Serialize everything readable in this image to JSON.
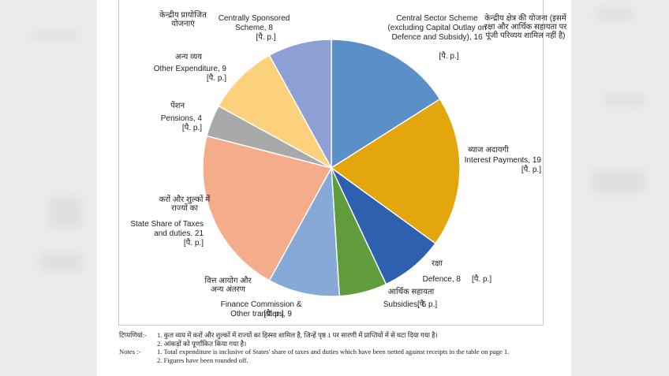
{
  "chart_data": {
    "type": "pie",
    "start_angle_deg": 0,
    "direction": "clockwise",
    "slices": [
      {
        "hi": "केन्द्रीय क्षेत्र की योजना (इसमें रक्षा और आर्थिक सहायता पर पूंजी परिव्यय शामिल नहीं है)",
        "label": "Central Sector Scheme (excluding Capital Outlay on Defence and Subsidy), 16",
        "note": "[पै. p.]",
        "value": 16,
        "color": "#5b8fc8"
      },
      {
        "hi": "ब्याज अदायगी",
        "label": "Interest Payments, 19",
        "note": "[पै. p.]",
        "value": 19,
        "color": "#e3a70d"
      },
      {
        "hi": "रक्षा",
        "label": "Defence, 8",
        "note": "[पै. p.]",
        "value": 8,
        "color": "#2e60b0"
      },
      {
        "hi": "आर्थिक सहायता",
        "label": "Subsidies, 6",
        "note": "[पै. p.]",
        "value": 6,
        "color": "#5f9d3c"
      },
      {
        "hi": "वित्त आयोग और अन्य अंतरण",
        "label": "Finance Commission & Other transfers, 9",
        "note": "[पै. p.]",
        "value": 9,
        "color": "#86a9d8"
      },
      {
        "hi": "करों और शुल्कों में राज्यों का हिस्सा",
        "label": "State Share of Taxes and duties. 21",
        "note": "[पै. p.]",
        "value": 21,
        "color": "#f4ac8a"
      },
      {
        "hi": "पेंशन",
        "label": "Pensions, 4",
        "note": "[पै. p.]",
        "value": 4,
        "color": "#a9a9a9"
      },
      {
        "hi": "अन्य व्यय",
        "label": "Other Expenditure, 9",
        "note": "[पै. p.]",
        "value": 9,
        "color": "#fcd17e"
      },
      {
        "hi": "केन्द्रीय प्रायोजित योजनाएं",
        "label": "Centrally Sponsored Scheme, 8",
        "note": "[पै. p.]",
        "value": 8,
        "color": "#8ca0d6"
      }
    ]
  },
  "notes": {
    "hindi_head": "टिप्पणियां:-",
    "hindi_1": "1. कुल व्यय में करों और शुल्कों में राज्यों का हिस्सा शामिल है, जिन्हें पृष्ठ 1 पर सारणी में प्राप्तियों में से घटा दिया गया है।",
    "hindi_2": "2. आंकड़ों को पूर्णांकित किया गया है।",
    "english_head": "Notes :-",
    "english_1": "1. Total expenditure is inclusive of States' share of taxes and duties which have been netted against receipts in the table on page 1.",
    "english_2": "2. Figures have been rounded off."
  }
}
